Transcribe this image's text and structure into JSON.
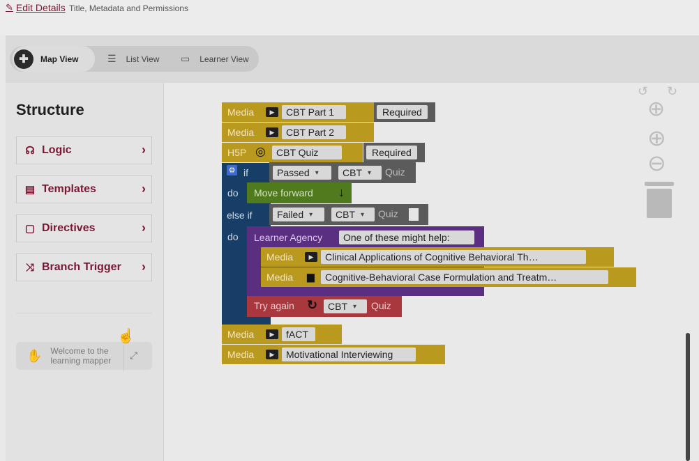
{
  "edit_bar": {
    "link_label": "Edit Details",
    "subtitle": "Title, Metadata and Permissions"
  },
  "views": [
    {
      "label": "Map View",
      "icon": "puzzle-icon",
      "active": true
    },
    {
      "label": "List View",
      "icon": "list-icon",
      "active": false
    },
    {
      "label": "Learner View",
      "icon": "monitor-icon",
      "active": false
    }
  ],
  "sidebar": {
    "title": "Structure",
    "categories": [
      {
        "label": "Logic",
        "icon": "brain-icon"
      },
      {
        "label": "Templates",
        "icon": "template-icon"
      },
      {
        "label": "Directives",
        "icon": "comment-icon"
      },
      {
        "label": "Branch Trigger",
        "icon": "shuffle-icon"
      }
    ],
    "welcome": "Welcome to the learning mapper"
  },
  "blocks": {
    "media_label": "Media",
    "h5p_label": "H5P",
    "required": "Required",
    "media1": "CBT Part 1",
    "media2": "CBT Part 2",
    "quiz": "CBT Quiz",
    "if_label": "if",
    "do_label": "do",
    "else_if_label": "else if",
    "cond1": {
      "status": "Passed",
      "target": "CBT",
      "suffix": "Quiz"
    },
    "move_forward": "Move forward",
    "cond2": {
      "status": "Failed",
      "target": "CBT",
      "suffix": "Quiz"
    },
    "agency": {
      "label": "Learner Agency",
      "message": "One of these might help:"
    },
    "agency_items": [
      "Clinical Applications of Cognitive Behavioral Th…",
      "Cognitive-Behavioral Case Formulation and Treatm…"
    ],
    "try_again": {
      "label": "Try again",
      "target": "CBT",
      "suffix": "Quiz"
    },
    "media3": "fACT",
    "media4": "Motivational Interviewing"
  },
  "colors": {
    "media": "#b99a1f",
    "logic": "#163e66",
    "action": "#4f7a1d",
    "agency": "#5a2e80",
    "retry": "#a8383e",
    "accent": "#7a1732"
  }
}
